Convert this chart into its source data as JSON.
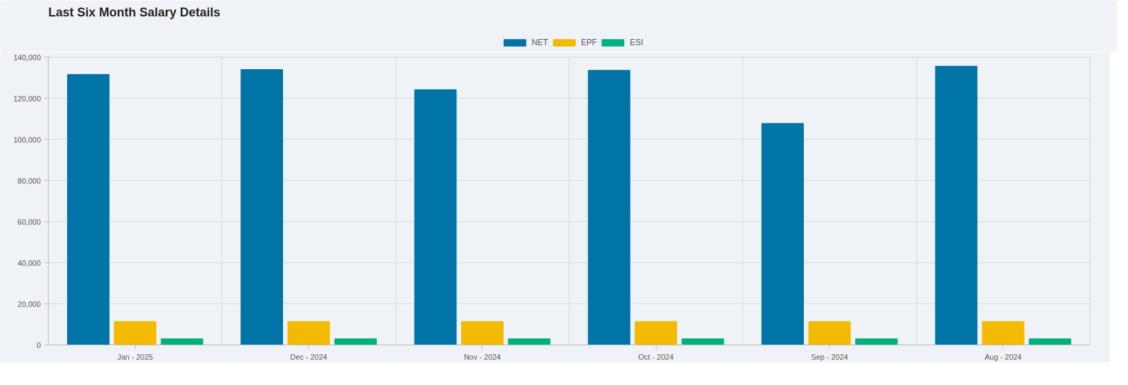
{
  "chart_data": {
    "type": "bar",
    "title": "Last Six Month Salary Details",
    "categories": [
      "Jan - 2025",
      "Dec - 2024",
      "Nov - 2024",
      "Oct - 2024",
      "Sep - 2024",
      "Aug - 2024"
    ],
    "series": [
      {
        "name": "NET",
        "color": "#0074a6",
        "values": [
          131600,
          134000,
          124200,
          133600,
          107800,
          135600
        ]
      },
      {
        "name": "EPF",
        "color": "#f2bb00",
        "values": [
          11400,
          11400,
          11400,
          11400,
          11400,
          11400
        ]
      },
      {
        "name": "ESI",
        "color": "#00b07f",
        "values": [
          3000,
          3000,
          3000,
          3000,
          3000,
          3000
        ]
      }
    ],
    "ylim": [
      0,
      140000
    ],
    "yticks": [
      0,
      {
        "value": 20000,
        "label": "20,000"
      },
      {
        "value": 40000,
        "label": "40,000"
      },
      {
        "value": 60000,
        "label": "60,000"
      },
      {
        "value": 80000,
        "label": "80,000"
      },
      {
        "value": 100000,
        "label": "100,000"
      },
      {
        "value": 120000,
        "label": "120,000"
      },
      {
        "value": 140000,
        "label": "140,000"
      }
    ],
    "grid": true,
    "legend": "top"
  }
}
